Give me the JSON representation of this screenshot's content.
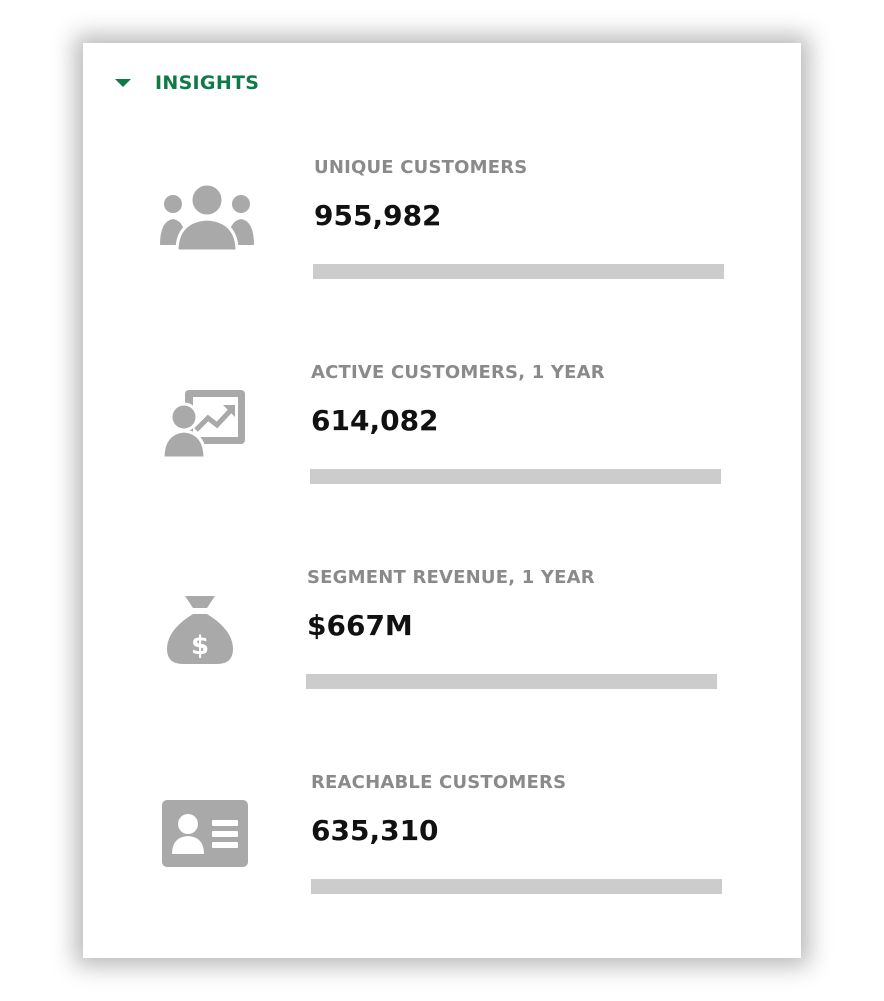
{
  "insights": {
    "title": "INSIGHTS",
    "accent_color": "#0f7a48",
    "metrics": [
      {
        "label": "UNIQUE CUSTOMERS",
        "value": "955,982",
        "icon": "users-group-icon"
      },
      {
        "label": "ACTIVE CUSTOMERS, 1 YEAR",
        "value": "614,082",
        "icon": "user-presentation-chart-icon"
      },
      {
        "label": "SEGMENT REVENUE, 1 YEAR",
        "value": "$667M",
        "icon": "money-bag-icon"
      },
      {
        "label": "REACHABLE CUSTOMERS",
        "value": "635,310",
        "icon": "contact-card-icon"
      }
    ]
  }
}
